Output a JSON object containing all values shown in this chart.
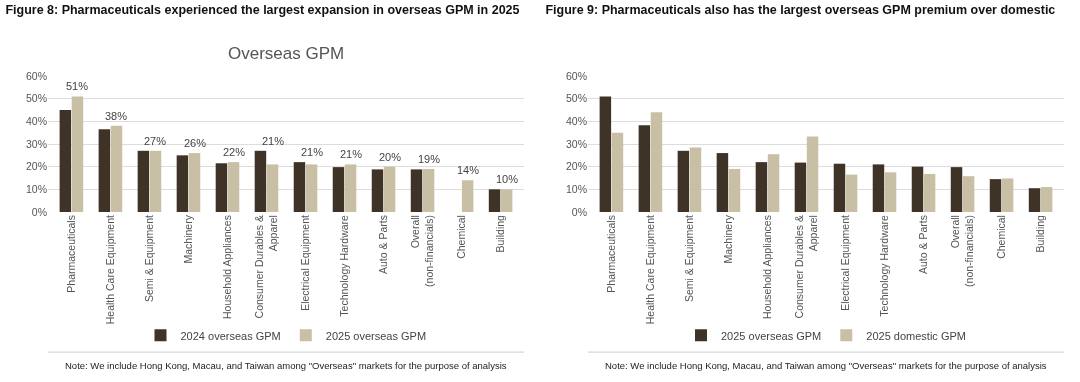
{
  "chart_data": [
    {
      "type": "bar",
      "title": "Figure 8: Pharmaceuticals experienced the largest expansion in overseas GPM in 2025",
      "subtitle": "Overseas GPM",
      "categories": [
        "Pharmaceuticals",
        "Health Care Equipment",
        "Semi & Equipment",
        "Machinery",
        "Household Appliances",
        "Consumer Durables & Apparel",
        "Electrical Equipment",
        "Technology Hardware",
        "Auto & Parts",
        "Overall (non-financials)",
        "Chemical",
        "Building"
      ],
      "series": [
        {
          "name": "2024 overseas GPM",
          "color": "#3f3328",
          "values": [
            45,
            36.5,
            27,
            25,
            21.5,
            27,
            22,
            19.8,
            18.8,
            18.8,
            null,
            10
          ]
        },
        {
          "name": "2025 overseas GPM",
          "color": "#c9bfa5",
          "values": [
            51,
            38,
            27,
            26,
            22,
            21,
            21,
            21,
            20,
            19,
            14,
            10
          ],
          "value_labels": [
            "51%",
            "38%",
            "27%",
            "26%",
            "22%",
            "21%",
            "21%",
            "21%",
            "20%",
            "19%",
            "14%",
            "10%"
          ]
        }
      ],
      "ylim": [
        0,
        60
      ],
      "yticks": [
        {
          "value": 0,
          "label": "0%"
        },
        {
          "value": 10,
          "label": "10%"
        },
        {
          "value": 20,
          "label": "20%"
        },
        {
          "value": 30,
          "label": "30%"
        },
        {
          "value": 40,
          "label": "40%"
        },
        {
          "value": 50,
          "label": "50%"
        },
        {
          "value": 60,
          "label": "60%"
        }
      ],
      "grid": "y",
      "legend": "bottom",
      "annotations": [
        "Note: We include Hong Kong, Macau, and Taiwan among \"Overseas\" markets for the purpose of analysis"
      ]
    },
    {
      "type": "bar",
      "title": "Figure 9: Pharmaceuticals also has the largest overseas GPM premium over domestic",
      "categories": [
        "Pharmaceuticals",
        "Health Care Equipment",
        "Semi & Equipment",
        "Machinery",
        "Household Appliances",
        "Consumer Durables & Apparel",
        "Electrical Equipment",
        "Technology Hardware",
        "Auto & Parts",
        "Overall (non-financials)",
        "Chemical",
        "Building"
      ],
      "series": [
        {
          "name": "2025 overseas GPM",
          "color": "#3f3328",
          "values": [
            51,
            38.3,
            27,
            26,
            22,
            21.8,
            21.3,
            21,
            20,
            19.8,
            14.5,
            10.5
          ]
        },
        {
          "name": "2025 domestic GPM",
          "color": "#c9bfa5",
          "values": [
            35,
            44,
            28.5,
            19,
            25.5,
            33.3,
            16.5,
            17.5,
            16.8,
            15.8,
            14.8,
            11
          ]
        }
      ],
      "ylim": [
        0,
        60
      ],
      "yticks": [
        {
          "value": 0,
          "label": "0%"
        },
        {
          "value": 10,
          "label": "10%"
        },
        {
          "value": 20,
          "label": "20%"
        },
        {
          "value": 30,
          "label": "30%"
        },
        {
          "value": 40,
          "label": "40%"
        },
        {
          "value": 50,
          "label": "50%"
        },
        {
          "value": 60,
          "label": "60%"
        }
      ],
      "grid": "y",
      "legend": "bottom",
      "annotations": [
        "Note: We include Hong Kong, Macau, and Taiwan among \"Overseas\" markets for the purpose of analysis"
      ]
    }
  ]
}
